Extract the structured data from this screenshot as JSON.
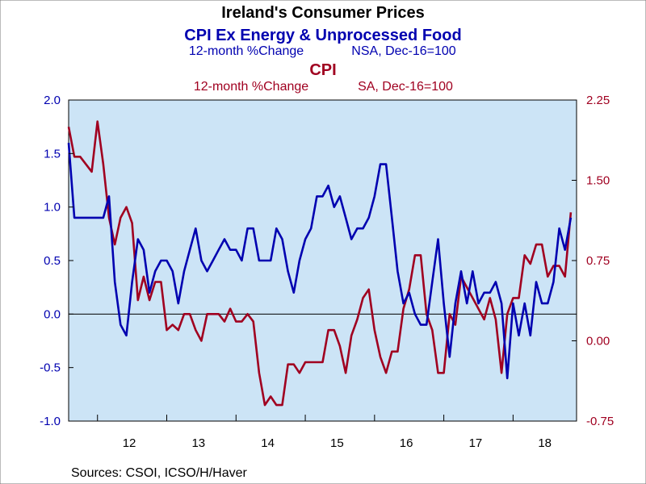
{
  "title": "Ireland's Consumer Prices",
  "series_titles": [
    {
      "name": "CPI Ex Energy & Unprocessed Food",
      "subtitle_left": "12-month %Change",
      "subtitle_right": "NSA, Dec-16=100",
      "color": "#0000b0"
    },
    {
      "name": "CPI",
      "subtitle_left": "12-month %Change",
      "subtitle_right": "SA, Dec-16=100",
      "color": "#a00020"
    }
  ],
  "source": "Sources:  CSOI, ICSO/H/Haver",
  "chart_data": {
    "type": "line",
    "x_tick_labels": [
      "12",
      "13",
      "14",
      "15",
      "16",
      "17",
      "18"
    ],
    "left_axis": {
      "ylim": [
        -1.0,
        2.0
      ],
      "tick_labels": [
        "2.0",
        "1.5",
        "1.0",
        "0.5",
        "0.0",
        "-0.5",
        "-1.0"
      ],
      "color": "#0000b0"
    },
    "right_axis": {
      "ylim": [
        -0.75,
        2.25
      ],
      "tick_labels": [
        "2.25",
        "1.50",
        "0.75",
        "0.00",
        "-0.75"
      ],
      "color": "#a00020"
    },
    "zero_line": true,
    "series": [
      {
        "name": "CPI Ex Energy & Unprocessed Food",
        "axis": "left",
        "color": "#0000b0",
        "points": [
          [
            "2011-08",
            1.6
          ],
          [
            "2011-09",
            0.9
          ],
          [
            "2011-10",
            0.9
          ],
          [
            "2011-11",
            0.9
          ],
          [
            "2011-12",
            0.9
          ],
          [
            "2012-01",
            0.9
          ],
          [
            "2012-02",
            0.9
          ],
          [
            "2012-03",
            1.1
          ],
          [
            "2012-04",
            0.3
          ],
          [
            "2012-05",
            -0.1
          ],
          [
            "2012-06",
            -0.2
          ],
          [
            "2012-07",
            0.3
          ],
          [
            "2012-08",
            0.7
          ],
          [
            "2012-09",
            0.6
          ],
          [
            "2012-10",
            0.2
          ],
          [
            "2012-11",
            0.4
          ],
          [
            "2012-12",
            0.5
          ],
          [
            "2013-01",
            0.5
          ],
          [
            "2013-02",
            0.4
          ],
          [
            "2013-03",
            0.1
          ],
          [
            "2013-04",
            0.4
          ],
          [
            "2013-05",
            0.6
          ],
          [
            "2013-06",
            0.8
          ],
          [
            "2013-07",
            0.5
          ],
          [
            "2013-08",
            0.4
          ],
          [
            "2013-09",
            0.5
          ],
          [
            "2013-10",
            0.6
          ],
          [
            "2013-11",
            0.7
          ],
          [
            "2013-12",
            0.6
          ],
          [
            "2014-01",
            0.6
          ],
          [
            "2014-02",
            0.5
          ],
          [
            "2014-03",
            0.8
          ],
          [
            "2014-04",
            0.8
          ],
          [
            "2014-05",
            0.5
          ],
          [
            "2014-06",
            0.5
          ],
          [
            "2014-07",
            0.5
          ],
          [
            "2014-08",
            0.8
          ],
          [
            "2014-09",
            0.7
          ],
          [
            "2014-10",
            0.4
          ],
          [
            "2014-11",
            0.2
          ],
          [
            "2014-12",
            0.5
          ],
          [
            "2015-01",
            0.7
          ],
          [
            "2015-02",
            0.8
          ],
          [
            "2015-03",
            1.1
          ],
          [
            "2015-04",
            1.1
          ],
          [
            "2015-05",
            1.2
          ],
          [
            "2015-06",
            1.0
          ],
          [
            "2015-07",
            1.1
          ],
          [
            "2015-08",
            0.9
          ],
          [
            "2015-09",
            0.7
          ],
          [
            "2015-10",
            0.8
          ],
          [
            "2015-11",
            0.8
          ],
          [
            "2015-12",
            0.9
          ],
          [
            "2016-01",
            1.1
          ],
          [
            "2016-02",
            1.4
          ],
          [
            "2016-03",
            1.4
          ],
          [
            "2016-04",
            0.9
          ],
          [
            "2016-05",
            0.4
          ],
          [
            "2016-06",
            0.1
          ],
          [
            "2016-07",
            0.2
          ],
          [
            "2016-08",
            0.0
          ],
          [
            "2016-09",
            -0.1
          ],
          [
            "2016-10",
            -0.1
          ],
          [
            "2016-11",
            0.3
          ],
          [
            "2016-12",
            0.7
          ],
          [
            "2017-01",
            0.1
          ],
          [
            "2017-02",
            -0.4
          ],
          [
            "2017-03",
            0.1
          ],
          [
            "2017-04",
            0.4
          ],
          [
            "2017-05",
            0.1
          ],
          [
            "2017-06",
            0.4
          ],
          [
            "2017-07",
            0.1
          ],
          [
            "2017-08",
            0.2
          ],
          [
            "2017-09",
            0.2
          ],
          [
            "2017-10",
            0.3
          ],
          [
            "2017-11",
            0.1
          ],
          [
            "2017-12",
            -0.6
          ],
          [
            "2018-01",
            0.1
          ],
          [
            "2018-02",
            -0.2
          ],
          [
            "2018-03",
            0.1
          ],
          [
            "2018-04",
            -0.2
          ],
          [
            "2018-05",
            0.3
          ],
          [
            "2018-06",
            0.1
          ],
          [
            "2018-07",
            0.1
          ],
          [
            "2018-08",
            0.3
          ],
          [
            "2018-09",
            0.8
          ],
          [
            "2018-10",
            0.6
          ],
          [
            "2018-11",
            0.9
          ]
        ]
      },
      {
        "name": "CPI",
        "axis": "right",
        "color": "#a00020",
        "points": [
          [
            "2011-08",
            2.0
          ],
          [
            "2011-09",
            1.72
          ],
          [
            "2011-10",
            1.72
          ],
          [
            "2011-11",
            1.65
          ],
          [
            "2011-12",
            1.58
          ],
          [
            "2012-01",
            2.05
          ],
          [
            "2012-02",
            1.65
          ],
          [
            "2012-03",
            1.15
          ],
          [
            "2012-04",
            0.9
          ],
          [
            "2012-05",
            1.15
          ],
          [
            "2012-06",
            1.25
          ],
          [
            "2012-07",
            1.1
          ],
          [
            "2012-08",
            0.38
          ],
          [
            "2012-09",
            0.6
          ],
          [
            "2012-10",
            0.38
          ],
          [
            "2012-11",
            0.55
          ],
          [
            "2012-12",
            0.55
          ],
          [
            "2013-01",
            0.1
          ],
          [
            "2013-02",
            0.15
          ],
          [
            "2013-03",
            0.1
          ],
          [
            "2013-04",
            0.25
          ],
          [
            "2013-05",
            0.25
          ],
          [
            "2013-06",
            0.1
          ],
          [
            "2013-07",
            0.0
          ],
          [
            "2013-08",
            0.25
          ],
          [
            "2013-09",
            0.25
          ],
          [
            "2013-10",
            0.25
          ],
          [
            "2013-11",
            0.18
          ],
          [
            "2013-12",
            0.3
          ],
          [
            "2014-01",
            0.18
          ],
          [
            "2014-02",
            0.18
          ],
          [
            "2014-03",
            0.25
          ],
          [
            "2014-04",
            0.18
          ],
          [
            "2014-05",
            -0.3
          ],
          [
            "2014-06",
            -0.6
          ],
          [
            "2014-07",
            -0.52
          ],
          [
            "2014-08",
            -0.6
          ],
          [
            "2014-09",
            -0.6
          ],
          [
            "2014-10",
            -0.22
          ],
          [
            "2014-11",
            -0.22
          ],
          [
            "2014-12",
            -0.3
          ],
          [
            "2015-01",
            -0.2
          ],
          [
            "2015-02",
            -0.2
          ],
          [
            "2015-03",
            -0.2
          ],
          [
            "2015-04",
            -0.2
          ],
          [
            "2015-05",
            0.1
          ],
          [
            "2015-06",
            0.1
          ],
          [
            "2015-07",
            -0.05
          ],
          [
            "2015-08",
            -0.3
          ],
          [
            "2015-09",
            0.05
          ],
          [
            "2015-10",
            0.2
          ],
          [
            "2015-11",
            0.4
          ],
          [
            "2015-12",
            0.48
          ],
          [
            "2016-01",
            0.1
          ],
          [
            "2016-02",
            -0.15
          ],
          [
            "2016-03",
            -0.3
          ],
          [
            "2016-04",
            -0.1
          ],
          [
            "2016-05",
            -0.1
          ],
          [
            "2016-06",
            0.3
          ],
          [
            "2016-07",
            0.48
          ],
          [
            "2016-08",
            0.8
          ],
          [
            "2016-09",
            0.8
          ],
          [
            "2016-10",
            0.25
          ],
          [
            "2016-11",
            0.1
          ],
          [
            "2016-12",
            -0.3
          ],
          [
            "2017-01",
            -0.3
          ],
          [
            "2017-02",
            0.25
          ],
          [
            "2017-03",
            0.15
          ],
          [
            "2017-04",
            0.6
          ],
          [
            "2017-05",
            0.5
          ],
          [
            "2017-06",
            0.4
          ],
          [
            "2017-07",
            0.3
          ],
          [
            "2017-08",
            0.2
          ],
          [
            "2017-09",
            0.4
          ],
          [
            "2017-10",
            0.2
          ],
          [
            "2017-11",
            -0.3
          ],
          [
            "2017-12",
            0.25
          ],
          [
            "2018-01",
            0.4
          ],
          [
            "2018-02",
            0.4
          ],
          [
            "2018-03",
            0.8
          ],
          [
            "2018-04",
            0.72
          ],
          [
            "2018-05",
            0.9
          ],
          [
            "2018-06",
            0.9
          ],
          [
            "2018-07",
            0.6
          ],
          [
            "2018-08",
            0.7
          ],
          [
            "2018-09",
            0.7
          ],
          [
            "2018-10",
            0.6
          ],
          [
            "2018-11",
            1.2
          ]
        ]
      }
    ]
  }
}
